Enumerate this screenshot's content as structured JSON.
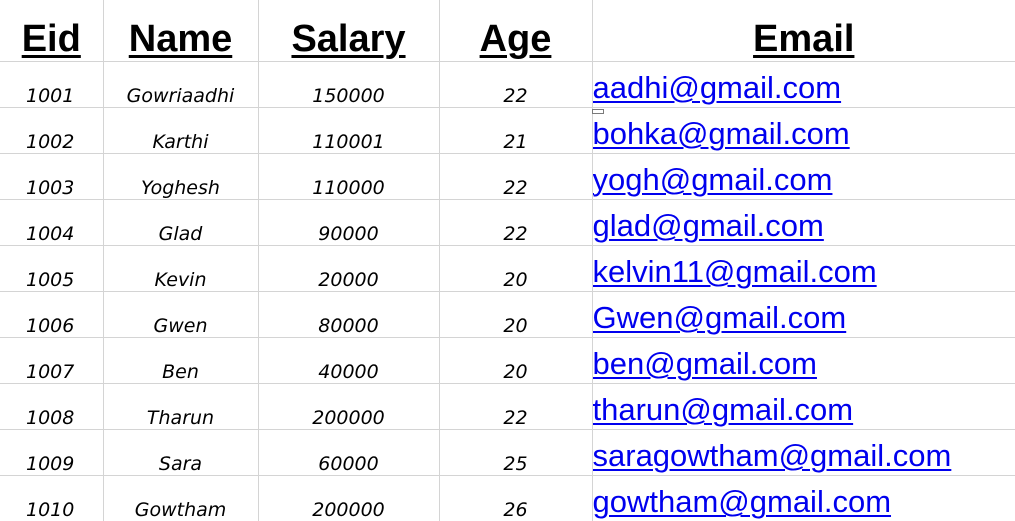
{
  "headers": {
    "eid": "Eid",
    "name": "Name",
    "salary": "Salary",
    "age": "Age",
    "email": "Email"
  },
  "rows": [
    {
      "eid": "1001",
      "name": "Gowriaadhi",
      "salary": "150000",
      "age": "22",
      "email": "aadhi@gmail.com"
    },
    {
      "eid": "1002",
      "name": "Karthi",
      "salary": "110001",
      "age": "21",
      "email": "bohka@gmail.com"
    },
    {
      "eid": "1003",
      "name": "Yoghesh",
      "salary": "110000",
      "age": "22",
      "email": "yogh@gmail.com"
    },
    {
      "eid": "1004",
      "name": "Glad",
      "salary": "90000",
      "age": "22",
      "email": "glad@gmail.com"
    },
    {
      "eid": "1005",
      "name": "Kevin",
      "salary": "20000",
      "age": "20",
      "email": "kelvin11@gmail.com"
    },
    {
      "eid": "1006",
      "name": "Gwen",
      "salary": "80000",
      "age": "20",
      "email": "Gwen@gmail.com"
    },
    {
      "eid": "1007",
      "name": "Ben",
      "salary": "40000",
      "age": "20",
      "email": "ben@gmail.com"
    },
    {
      "eid": "1008",
      "name": "Tharun",
      "salary": "200000",
      "age": "22",
      "email": "tharun@gmail.com"
    },
    {
      "eid": "1009",
      "name": "Sara",
      "salary": "60000",
      "age": "25",
      "email": "saragowtham@gmail.com"
    },
    {
      "eid": "1010",
      "name": "Gowtham",
      "salary": "200000",
      "age": "26",
      "email": "gowtham@gmail.com"
    }
  ],
  "colors": {
    "link": "#0000ee",
    "gridline": "#d4d4d4",
    "text": "#000000"
  }
}
